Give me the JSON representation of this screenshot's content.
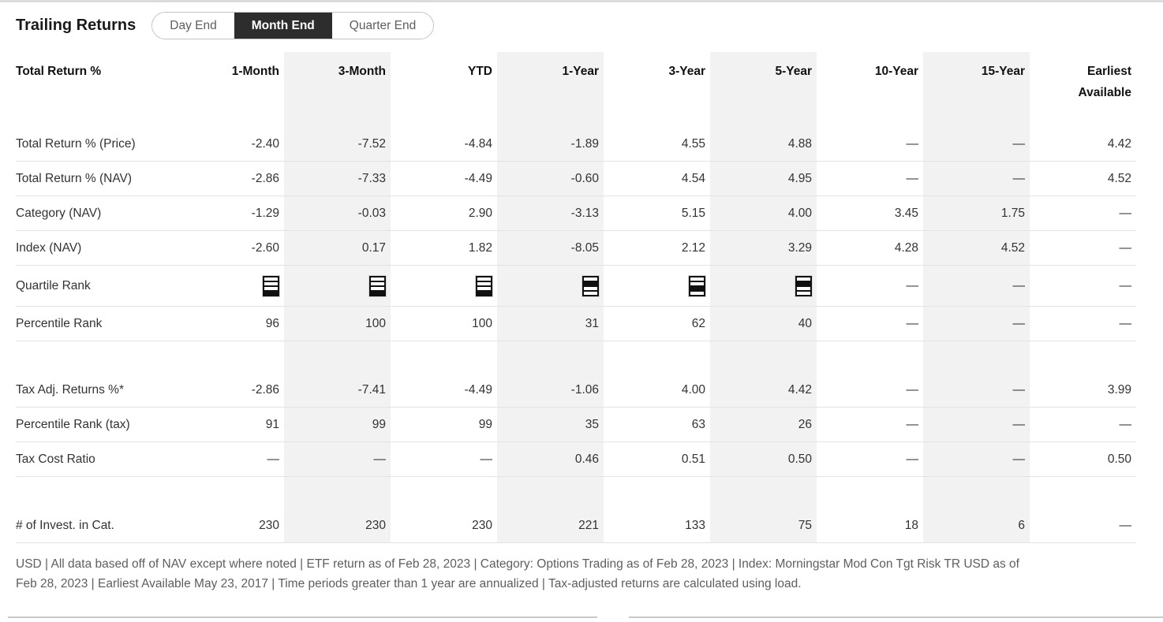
{
  "header": {
    "title": "Trailing Returns",
    "tabs": [
      {
        "label": "Day End",
        "selected": false
      },
      {
        "label": "Month End",
        "selected": true
      },
      {
        "label": "Quarter End",
        "selected": false
      }
    ]
  },
  "table": {
    "label_column_header": "Total Return %",
    "columns": [
      "1-Month",
      "3-Month",
      "YTD",
      "1-Year",
      "3-Year",
      "5-Year",
      "10-Year",
      "15-Year",
      "Earliest\nAvailable"
    ],
    "striped_column_indexes": [
      1,
      3,
      5,
      7
    ],
    "empty_value": "—",
    "rows": [
      {
        "type": "values",
        "label": "Total Return % (Price)",
        "values": [
          "-2.40",
          "-7.52",
          "-4.84",
          "-1.89",
          "4.55",
          "4.88",
          "—",
          "—",
          "4.42"
        ]
      },
      {
        "type": "values",
        "label": "Total Return % (NAV)",
        "values": [
          "-2.86",
          "-7.33",
          "-4.49",
          "-0.60",
          "4.54",
          "4.95",
          "—",
          "—",
          "4.52"
        ]
      },
      {
        "type": "values",
        "label": "Category (NAV)",
        "values": [
          "-1.29",
          "-0.03",
          "2.90",
          "-3.13",
          "5.15",
          "4.00",
          "3.45",
          "1.75",
          "—"
        ]
      },
      {
        "type": "values",
        "label": "Index (NAV)",
        "values": [
          "-2.60",
          "0.17",
          "1.82",
          "-8.05",
          "2.12",
          "3.29",
          "4.28",
          "4.52",
          "—"
        ]
      },
      {
        "type": "quartile",
        "label": "Quartile Rank",
        "quartiles": [
          4,
          4,
          4,
          2,
          3,
          2,
          null,
          null,
          null
        ]
      },
      {
        "type": "values",
        "label": "Percentile Rank",
        "values": [
          "96",
          "100",
          "100",
          "31",
          "62",
          "40",
          "—",
          "—",
          "—"
        ]
      },
      {
        "type": "spacer"
      },
      {
        "type": "values",
        "label": "Tax Adj. Returns %*",
        "values": [
          "-2.86",
          "-7.41",
          "-4.49",
          "-1.06",
          "4.00",
          "4.42",
          "—",
          "—",
          "3.99"
        ]
      },
      {
        "type": "values",
        "label": "Percentile Rank (tax)",
        "values": [
          "91",
          "99",
          "99",
          "35",
          "63",
          "26",
          "—",
          "—",
          "—"
        ]
      },
      {
        "type": "values",
        "label": "Tax Cost Ratio",
        "values": [
          "—",
          "—",
          "—",
          "0.46",
          "0.51",
          "0.50",
          "—",
          "—",
          "0.50"
        ]
      },
      {
        "type": "spacer"
      },
      {
        "type": "values",
        "label": "# of Invest. in Cat.",
        "values": [
          "230",
          "230",
          "230",
          "221",
          "133",
          "75",
          "18",
          "6",
          "—"
        ]
      }
    ]
  },
  "footnote": {
    "lines": [
      "USD | All data based off of NAV except where noted | ETF return as of Feb 28, 2023 | Category: Options Trading as of Feb 28, 2023 | Index: Morningstar Mod Con Tgt Risk TR USD as of",
      "Feb 28, 2023 | Earliest Available May 23, 2017 | Time periods greater than 1 year are annualized | Tax-adjusted returns are calculated using load."
    ]
  },
  "colors": {
    "selected_tab_bg": "#2d2d2d",
    "column_stripe": "#f2f2f2",
    "quartile_icon": "#111111"
  }
}
